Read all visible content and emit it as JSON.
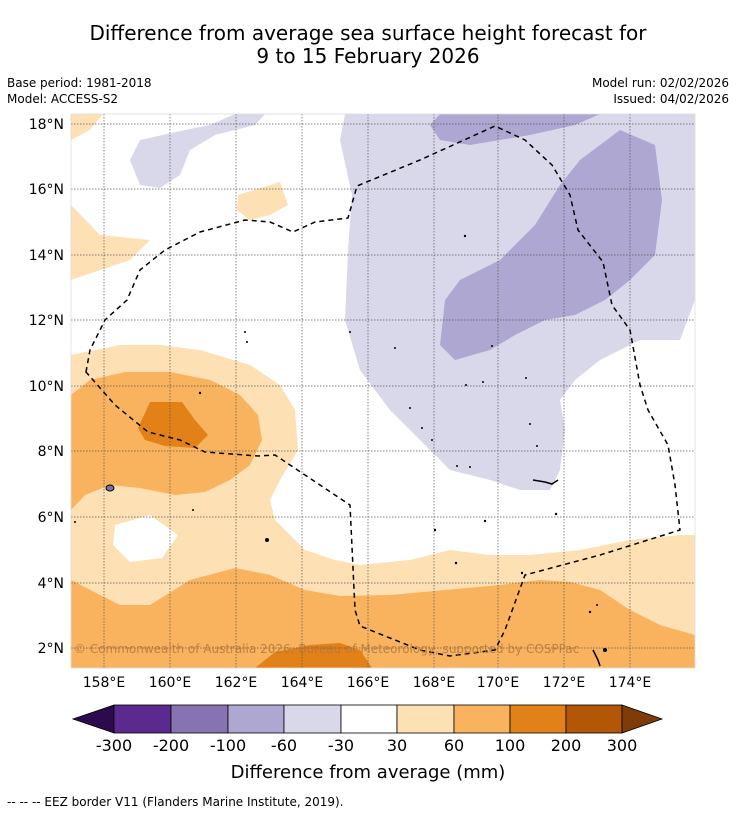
{
  "title": {
    "line1": "Difference from average sea surface height forecast for",
    "line2": "9 to 15 February 2026"
  },
  "meta": {
    "base_period": "Base period: 1981-2018",
    "model": "Model: ACCESS-S2",
    "model_run": "Model run: 02/02/2026",
    "issued": "Issued: 04/02/2026"
  },
  "map": {
    "lon_ticks": [
      "158°E",
      "160°E",
      "162°E",
      "164°E",
      "166°E",
      "168°E",
      "170°E",
      "172°E",
      "174°E"
    ],
    "lat_ticks": [
      "18°N",
      "16°N",
      "14°N",
      "12°N",
      "10°N",
      "8°N",
      "6°N",
      "4°N",
      "2°N"
    ],
    "copyright": "© Commonwealth of Australia 2026, Bureau of Meteorology, supported by COSPPac",
    "colors": {
      "neg300": "#2d0a4e",
      "neg200": "#5a2a8e",
      "neg100": "#8574b0",
      "neg60": "#aea7d1",
      "neg30": "#d8d8ea",
      "neutral": "#ffffff",
      "pos30": "#fde0b4",
      "pos60": "#f9b35e",
      "pos100": "#e28117",
      "pos200": "#b35707",
      "pos300": "#7f3b08"
    }
  },
  "colorbar": {
    "labels": [
      "-300",
      "-200",
      "-100",
      "-60",
      "-30",
      "30",
      "60",
      "100",
      "200",
      "300"
    ],
    "title": "Difference from average (mm)"
  },
  "footnote": "--  --  -- EEZ border V11 (Flanders Marine Institute, 2019)."
}
